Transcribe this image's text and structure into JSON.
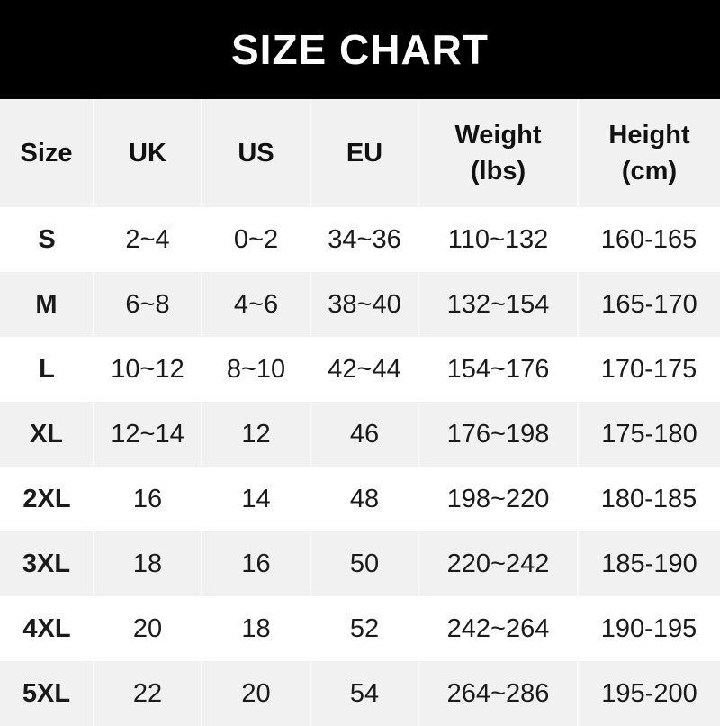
{
  "title": "SIZE CHART",
  "headers": [
    {
      "line1": "Size",
      "line2": ""
    },
    {
      "line1": "UK",
      "line2": ""
    },
    {
      "line1": "US",
      "line2": ""
    },
    {
      "line1": "EU",
      "line2": ""
    },
    {
      "line1": "Weight",
      "line2": "(lbs)"
    },
    {
      "line1": "Height",
      "line2": "(cm)"
    }
  ],
  "rows": [
    [
      "S",
      "2~4",
      "0~2",
      "34~36",
      "110~132",
      "160-165"
    ],
    [
      "M",
      "6~8",
      "4~6",
      "38~40",
      "132~154",
      "165-170"
    ],
    [
      "L",
      "10~12",
      "8~10",
      "42~44",
      "154~176",
      "170-175"
    ],
    [
      "XL",
      "12~14",
      "12",
      "46",
      "176~198",
      "175-180"
    ],
    [
      "2XL",
      "16",
      "14",
      "48",
      "198~220",
      "180-185"
    ],
    [
      "3XL",
      "18",
      "16",
      "50",
      "220~242",
      "185-190"
    ],
    [
      "4XL",
      "20",
      "18",
      "52",
      "242~264",
      "190-195"
    ],
    [
      "5XL",
      "22",
      "20",
      "54",
      "264~286",
      "195-200"
    ]
  ],
  "colors": {
    "banner": "#000000",
    "stripe": "#f1f1f1",
    "text": "#111111"
  }
}
